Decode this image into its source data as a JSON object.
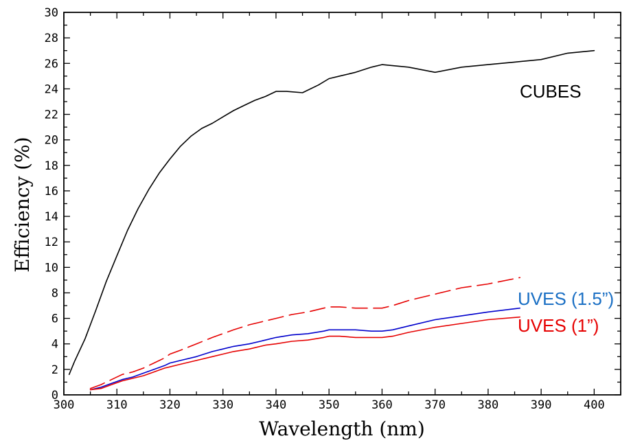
{
  "chart_data": {
    "type": "line",
    "title": "",
    "xlabel": "Wavelength (nm)",
    "ylabel": "Efficiency (%)",
    "xlim": [
      300,
      405
    ],
    "ylim": [
      0,
      30
    ],
    "xticks": [
      300,
      310,
      320,
      330,
      340,
      350,
      360,
      370,
      380,
      390,
      400
    ],
    "yticks": [
      0,
      2,
      4,
      6,
      8,
      10,
      12,
      14,
      16,
      18,
      20,
      22,
      24,
      26,
      28,
      30
    ],
    "series": [
      {
        "name": "CUBES",
        "label": "CUBES",
        "color": "#000000",
        "dash": "solid",
        "x": [
          301,
          302,
          304,
          306,
          308,
          310,
          312,
          314,
          316,
          318,
          320,
          322,
          324,
          326,
          328,
          330,
          332,
          334,
          336,
          338,
          340,
          342,
          345,
          348,
          350,
          352,
          355,
          358,
          360,
          365,
          370,
          375,
          380,
          385,
          390,
          395,
          400
        ],
        "y": [
          1.6,
          2.6,
          4.4,
          6.6,
          8.9,
          10.9,
          12.9,
          14.6,
          16.1,
          17.4,
          18.5,
          19.5,
          20.3,
          20.9,
          21.3,
          21.8,
          22.3,
          22.7,
          23.1,
          23.4,
          23.8,
          23.8,
          23.7,
          24.3,
          24.8,
          25.0,
          25.3,
          25.7,
          25.9,
          25.7,
          25.3,
          25.7,
          25.9,
          26.1,
          26.3,
          26.8,
          27.0
        ]
      },
      {
        "name": "UVES (1.5”)",
        "label": "UVES (1.5”)",
        "color": "#0000cc",
        "label_color": "#1a6fc4",
        "dash": "solid",
        "x": [
          305,
          307,
          309,
          311,
          313,
          315,
          317,
          319,
          320,
          322,
          325,
          328,
          330,
          332,
          335,
          338,
          340,
          343,
          346,
          349,
          350,
          352,
          355,
          358,
          360,
          362,
          365,
          370,
          375,
          380,
          386
        ],
        "y": [
          0.4,
          0.6,
          0.9,
          1.2,
          1.4,
          1.7,
          2.0,
          2.3,
          2.5,
          2.7,
          3.0,
          3.4,
          3.6,
          3.8,
          4.0,
          4.3,
          4.5,
          4.7,
          4.8,
          5.0,
          5.1,
          5.1,
          5.1,
          5.0,
          5.0,
          5.1,
          5.4,
          5.9,
          6.2,
          6.5,
          6.8
        ]
      },
      {
        "name": "UVES (1”)",
        "label": "UVES (1”)",
        "color": "#e60000",
        "label_color": "#e60000",
        "dash": "solid",
        "x": [
          305,
          307,
          309,
          311,
          313,
          315,
          317,
          319,
          320,
          322,
          325,
          328,
          330,
          332,
          335,
          338,
          340,
          343,
          346,
          349,
          350,
          352,
          355,
          358,
          360,
          362,
          365,
          370,
          375,
          380,
          386
        ],
        "y": [
          0.4,
          0.5,
          0.8,
          1.1,
          1.3,
          1.5,
          1.8,
          2.1,
          2.2,
          2.4,
          2.7,
          3.0,
          3.2,
          3.4,
          3.6,
          3.9,
          4.0,
          4.2,
          4.3,
          4.5,
          4.6,
          4.6,
          4.5,
          4.5,
          4.5,
          4.6,
          4.9,
          5.3,
          5.6,
          5.9,
          6.1
        ]
      },
      {
        "name": "UVES (1”) dashed",
        "color": "#e60000",
        "dash": "dashed",
        "x": [
          305,
          307,
          309,
          311,
          313,
          315,
          317,
          319,
          320,
          322,
          325,
          328,
          330,
          332,
          335,
          338,
          340,
          343,
          346,
          349,
          350,
          352,
          355,
          358,
          360,
          362,
          365,
          370,
          375,
          380,
          386
        ],
        "y": [
          0.5,
          0.8,
          1.2,
          1.6,
          1.8,
          2.1,
          2.5,
          2.9,
          3.2,
          3.5,
          4.0,
          4.5,
          4.8,
          5.1,
          5.5,
          5.8,
          6.0,
          6.3,
          6.5,
          6.8,
          6.9,
          6.9,
          6.8,
          6.8,
          6.8,
          7.0,
          7.4,
          7.9,
          8.4,
          8.7,
          9.2
        ]
      }
    ]
  }
}
